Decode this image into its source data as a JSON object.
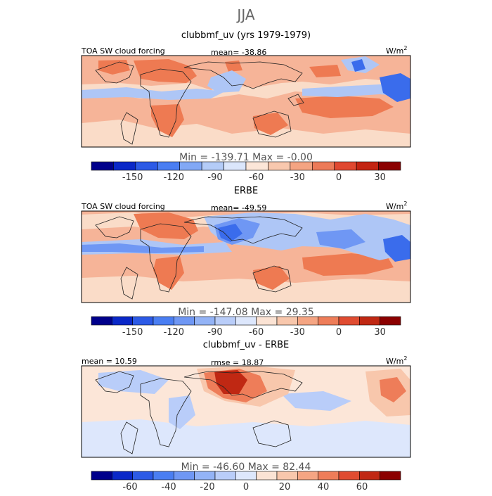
{
  "figure_title": "JJA",
  "colors": {
    "cb1": [
      "#00008b",
      "#0a28c8",
      "#2c5ae6",
      "#4a7ef2",
      "#82a8f5",
      "#b4ccf8",
      "#dbe6fb",
      "#fce6d8",
      "#f8c8ae",
      "#f4a482",
      "#ec7a58",
      "#e04830",
      "#c32412",
      "#8b0000"
    ],
    "cb2": [
      "#00008b",
      "#0a28c8",
      "#2c5ae6",
      "#4a7ef2",
      "#6f97f4",
      "#93b3f6",
      "#b9cdf9",
      "#dde7fc",
      "#fbe3d4",
      "#f8c7ac",
      "#f5a583",
      "#ee7d59",
      "#e04c31",
      "#c02813",
      "#8b0000"
    ],
    "ocean": "#f6b498"
  },
  "chart_data": [
    {
      "type": "heatmap",
      "title": "clubbmf_uv (yrs 1979-1979)",
      "left_label": "TOA SW cloud forcing",
      "stat_label": "mean=  -38.86",
      "mean": -38.86,
      "units_base": "W/m",
      "units_exp": "2",
      "minmax_label": "Min =  -139.71  Max =    -0.00",
      "min": -139.71,
      "max": -0.0,
      "colorbar_ticks": [
        "-150",
        "-120",
        "-90",
        "-60",
        "-30",
        "0",
        "30"
      ],
      "colorbar_levels": [
        -180,
        -165,
        -150,
        -135,
        -120,
        -105,
        -90,
        -75,
        -60,
        -45,
        -30,
        -15,
        0,
        15,
        30,
        45
      ]
    },
    {
      "type": "heatmap",
      "title": "ERBE",
      "left_label": "TOA SW cloud forcing",
      "stat_label": "mean=  -49.59",
      "mean": -49.59,
      "units_base": "W/m",
      "units_exp": "2",
      "minmax_label": "Min =  -147.08  Max =   29.35",
      "min": -147.08,
      "max": 29.35,
      "colorbar_ticks": [
        "-150",
        "-120",
        "-90",
        "-60",
        "-30",
        "0",
        "30"
      ],
      "colorbar_levels": [
        -180,
        -165,
        -150,
        -135,
        -120,
        -105,
        -90,
        -75,
        -60,
        -45,
        -30,
        -15,
        0,
        15,
        30,
        45
      ]
    },
    {
      "type": "heatmap",
      "title": "clubbmf_uv - ERBE",
      "left_label": "mean =  10.59",
      "stat_label": "rmse =  18.87",
      "mean": 10.59,
      "rmse": 18.87,
      "units_base": "W/m",
      "units_exp": "2",
      "minmax_label": "Min =  -46.60  Max =   82.44",
      "min": -46.6,
      "max": 82.44,
      "colorbar_ticks": [
        "-60",
        "-40",
        "-20",
        "0",
        "20",
        "40",
        "60"
      ],
      "colorbar_levels": [
        -80,
        -70,
        -60,
        -50,
        -40,
        -30,
        -20,
        -10,
        0,
        10,
        20,
        30,
        40,
        50,
        60,
        70,
        80
      ]
    }
  ]
}
